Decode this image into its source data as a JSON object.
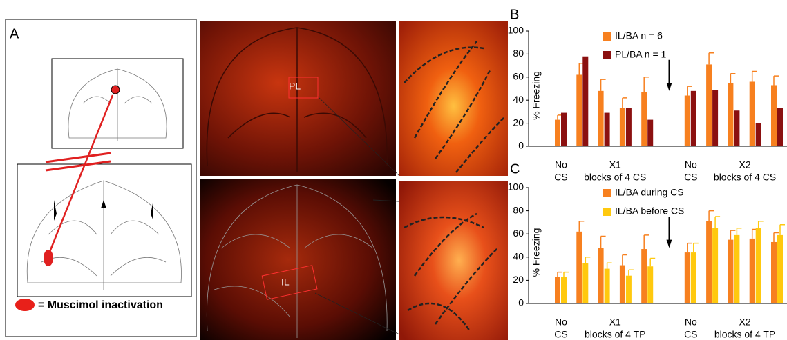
{
  "figure": {
    "panel_a": "A",
    "panel_b": "B",
    "panel_c": "C",
    "pl_label": "PL",
    "il_label": "IL",
    "legend_a": "= Muscimol inactivation"
  },
  "chart_data": [
    {
      "type": "bar",
      "ylabel": "% Freezing",
      "ylim": [
        0,
        100
      ],
      "yticks": [
        0,
        20,
        40,
        60,
        80,
        100
      ],
      "groups": [
        {
          "label": [
            "No",
            "CS"
          ],
          "count": 1
        },
        {
          "label": [
            "X1",
            "blocks of 4 CS"
          ],
          "count": 4
        },
        {
          "label": [
            "No",
            "CS"
          ],
          "count": 1
        },
        {
          "label": [
            "X2",
            "blocks of 4 CS"
          ],
          "count": 4
        }
      ],
      "series": [
        {
          "name": "IL/BA n = 6",
          "color": "#f7801f",
          "values": [
            23,
            62,
            48,
            33,
            47,
            44,
            71,
            55,
            56,
            53
          ],
          "errors": [
            4,
            10,
            10,
            9,
            13,
            8,
            10,
            8,
            9,
            8
          ]
        },
        {
          "name": "PL/BA n = 1",
          "color": "#8b1010",
          "values": [
            29,
            78,
            29,
            33,
            23,
            48,
            49,
            31,
            20,
            33
          ]
        }
      ]
    },
    {
      "type": "bar",
      "ylabel": "% Freezing",
      "ylim": [
        0,
        100
      ],
      "yticks": [
        0,
        20,
        40,
        60,
        80,
        100
      ],
      "groups": [
        {
          "label": [
            "No",
            "CS"
          ],
          "count": 1
        },
        {
          "label": [
            "X1",
            "blocks of 4 TP"
          ],
          "count": 4
        },
        {
          "label": [
            "No",
            "CS"
          ],
          "count": 1
        },
        {
          "label": [
            "X2",
            "blocks of 4 TP"
          ],
          "count": 4
        }
      ],
      "series": [
        {
          "name": "IL/BA during CS",
          "color": "#f7801f",
          "values": [
            23,
            62,
            48,
            33,
            47,
            44,
            71,
            55,
            56,
            53
          ],
          "errors": [
            4,
            9,
            10,
            9,
            12,
            8,
            9,
            8,
            8,
            8
          ]
        },
        {
          "name": "IL/BA before CS",
          "color": "#ffc90e",
          "values": [
            23,
            35,
            30,
            24,
            32,
            44,
            65,
            59,
            65,
            59
          ],
          "errors": [
            4,
            5,
            5,
            5,
            7,
            8,
            10,
            6,
            6,
            9
          ]
        }
      ]
    }
  ]
}
